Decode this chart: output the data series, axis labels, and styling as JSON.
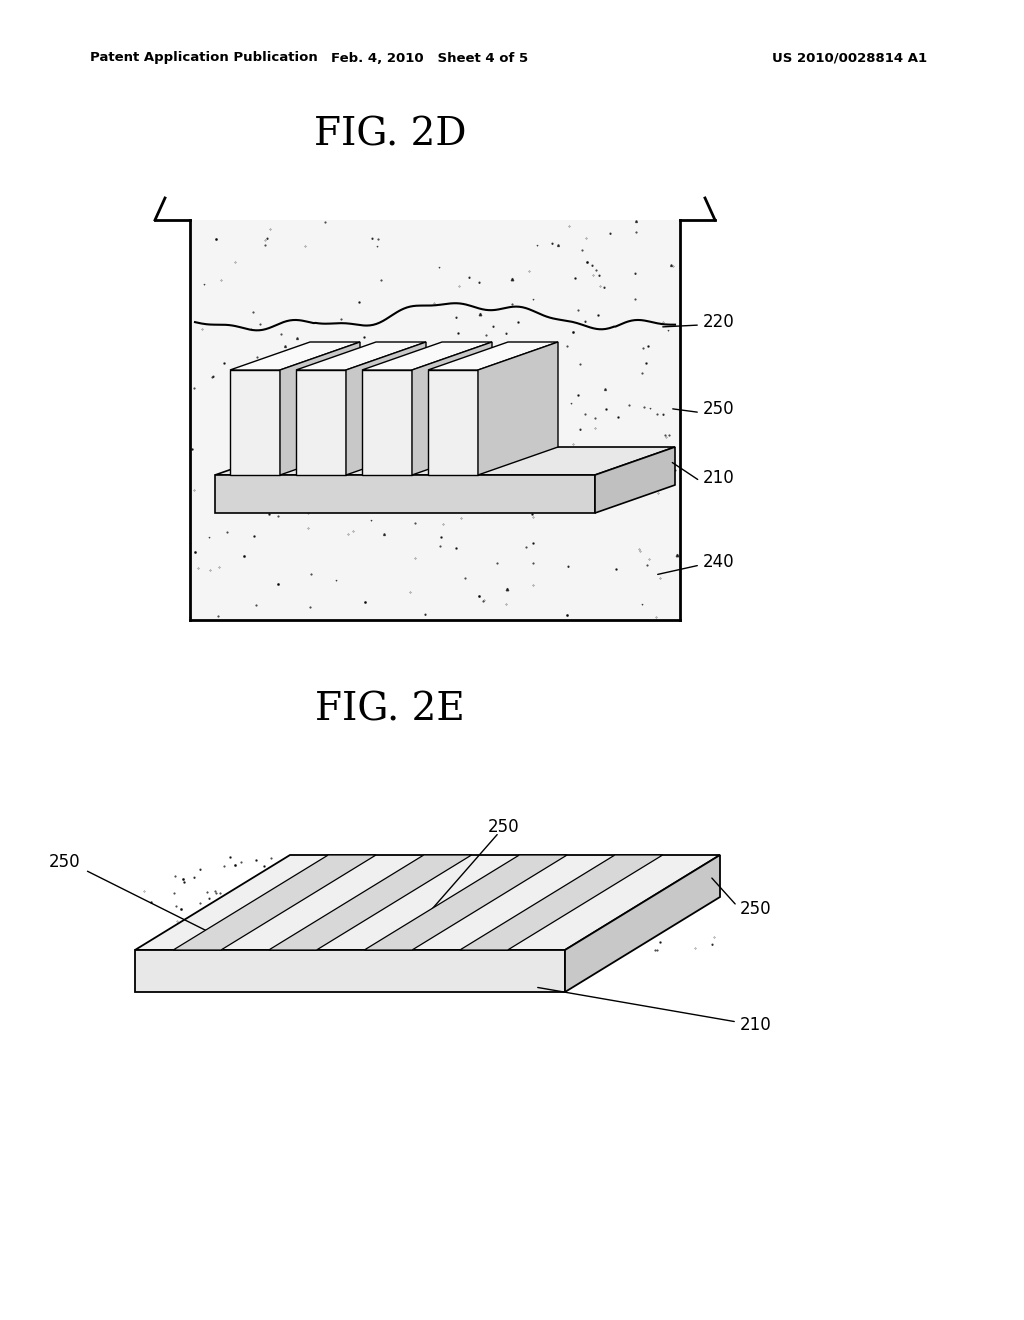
{
  "background_color": "#ffffff",
  "header_left": "Patent Application Publication",
  "header_mid": "Feb. 4, 2010   Sheet 4 of 5",
  "header_right": "US 2010/0028814 A1",
  "fig2d_label": "FIG. 2D",
  "fig2e_label": "FIG. 2E",
  "label_220": "220",
  "label_250_2d": "250",
  "label_210_2d": "210",
  "label_240": "240",
  "label_210_2e": "210",
  "label_250_2e_top": "250",
  "label_250_2e_left": "250",
  "label_250_2e_right": "250"
}
